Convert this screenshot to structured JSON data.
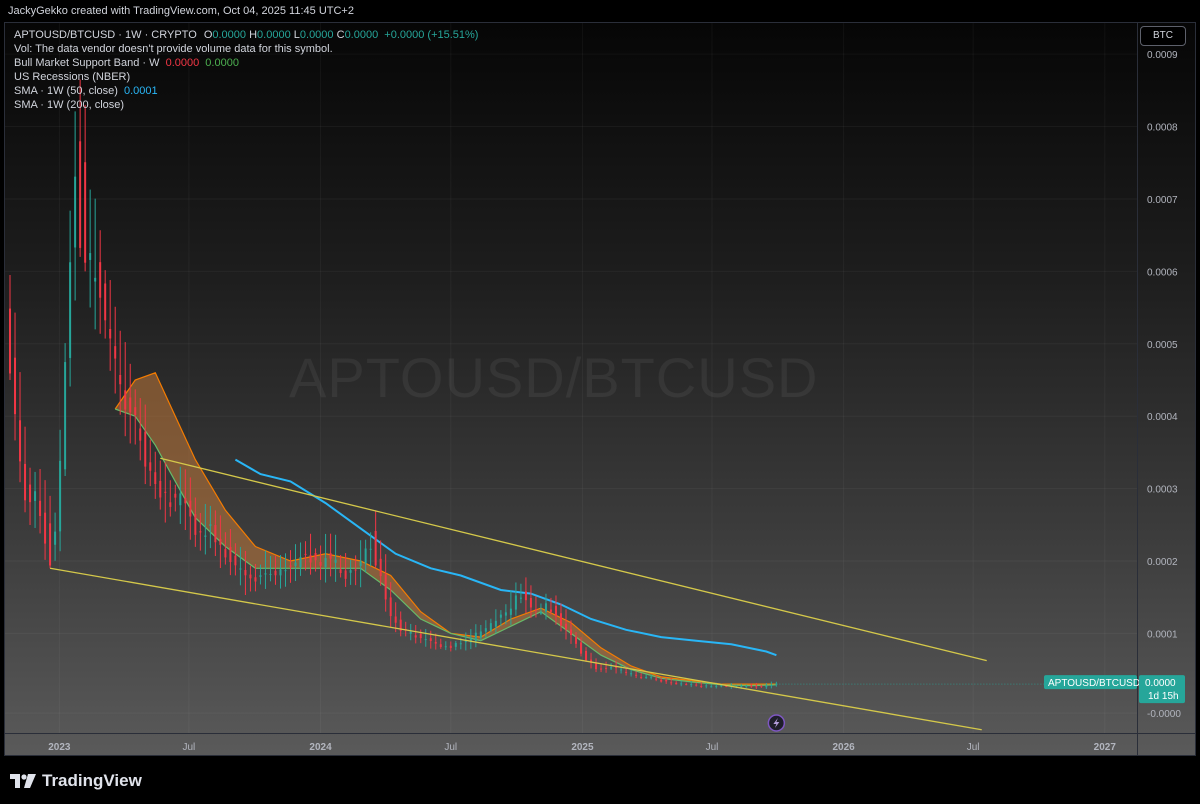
{
  "header": {
    "credit": "JackyGekko created with TradingView.com, Oct 04, 2025 11:45 UTC+2"
  },
  "legend": {
    "symbol_line": {
      "prefix": "APTOUSD/BTCUSD · 1W · CRYPTO",
      "o_label": "O",
      "o_value": "0.0000",
      "h_label": "H",
      "h_value": "0.0000",
      "l_label": "L",
      "l_value": "0.0000",
      "c_label": "C",
      "c_value": "0.0000",
      "change": "+0.0000 (+15.51%)"
    },
    "vol_line": "Vol: The data vendor doesn't provide volume data for this symbol.",
    "bull_band": {
      "label": "Bull Market Support Band · W",
      "value_red": "0.0000",
      "value_green": "0.0000"
    },
    "recessions": "US Recessions (NBER)",
    "sma50": {
      "label": "SMA · 1W (50, close)",
      "value": "0.0001"
    },
    "sma200": {
      "label": "SMA · 1W (200, close)"
    }
  },
  "currency_badge": "BTC",
  "watermark": "APTOUSD/BTCUSD",
  "price_label": {
    "symbol": "APTOUSD/BTCUSD",
    "price": "0.0000",
    "countdown": "1d 15h"
  },
  "branding": {
    "name": "TradingView"
  },
  "colors": {
    "up": "#26a69a",
    "down": "#f23645",
    "sma50": "#29b6f6",
    "bull_band_fill": "#c0793a",
    "bull_band_line": "#66bb6a",
    "channel": "#d4c84a"
  },
  "chart_data": {
    "type": "candlestick",
    "symbol": "APTOUSD/BTCUSD",
    "timeframe": "1W",
    "x_axis": {
      "range": [
        "2022-10-17",
        "2027-02-15"
      ],
      "ticks": [
        {
          "date": "2023-01-01",
          "label": "2023",
          "bold": true
        },
        {
          "date": "2023-07-01",
          "label": "Jul",
          "bold": false
        },
        {
          "date": "2024-01-01",
          "label": "2024",
          "bold": true
        },
        {
          "date": "2024-07-01",
          "label": "Jul",
          "bold": false
        },
        {
          "date": "2025-01-01",
          "label": "2025",
          "bold": true
        },
        {
          "date": "2025-07-01",
          "label": "Jul",
          "bold": false
        },
        {
          "date": "2026-01-01",
          "label": "2026",
          "bold": true
        },
        {
          "date": "2026-07-01",
          "label": "Jul",
          "bold": false
        },
        {
          "date": "2027-01-01",
          "label": "2027",
          "bold": true
        }
      ]
    },
    "y_axis": {
      "range": [
        -3.75e-05,
        0.000943
      ],
      "ticks": [
        {
          "value": 0.0009,
          "label": "0.0009"
        },
        {
          "value": 0.0008,
          "label": "0.0008"
        },
        {
          "value": 0.0007,
          "label": "0.0007"
        },
        {
          "value": 0.0006,
          "label": "0.0006"
        },
        {
          "value": 0.0005,
          "label": "0.0005"
        },
        {
          "value": 0.0004,
          "label": "0.0004"
        },
        {
          "value": 0.0003,
          "label": "0.0003"
        },
        {
          "value": 0.0002,
          "label": "0.0002"
        },
        {
          "value": 0.0001,
          "label": "0.0001"
        },
        {
          "value": -1e-05,
          "label": "-0.0000"
        }
      ]
    },
    "price_path": [
      [
        "2022-10-24",
        0.00052
      ],
      [
        "2022-11-07",
        0.00037
      ],
      [
        "2022-11-21",
        0.00027
      ],
      [
        "2022-12-05",
        0.00029
      ],
      [
        "2022-12-19",
        0.00021
      ],
      [
        "2023-01-02",
        0.00025
      ],
      [
        "2023-01-09",
        0.00042
      ],
      [
        "2023-01-16",
        0.00052
      ],
      [
        "2023-01-23",
        0.00075
      ],
      [
        "2023-01-30",
        0.00068
      ],
      [
        "2023-02-13",
        0.00062
      ],
      [
        "2023-02-27",
        0.00058
      ],
      [
        "2023-03-13",
        0.00052
      ],
      [
        "2023-03-27",
        0.00045
      ],
      [
        "2023-04-10",
        0.00041
      ],
      [
        "2023-04-24",
        0.00038
      ],
      [
        "2023-05-08",
        0.00033
      ],
      [
        "2023-05-22",
        0.0003
      ],
      [
        "2023-06-05",
        0.00028
      ],
      [
        "2023-06-19",
        0.00029
      ],
      [
        "2023-07-03",
        0.00027
      ],
      [
        "2023-07-17",
        0.00023
      ],
      [
        "2023-07-31",
        0.00025
      ],
      [
        "2023-08-14",
        0.00022
      ],
      [
        "2023-08-28",
        0.00021
      ],
      [
        "2023-09-11",
        0.00019
      ],
      [
        "2023-09-25",
        0.00017
      ],
      [
        "2023-10-09",
        0.00018
      ],
      [
        "2023-10-23",
        0.00019
      ],
      [
        "2023-11-06",
        0.00018
      ],
      [
        "2023-11-20",
        0.00019
      ],
      [
        "2023-12-04",
        0.0002
      ],
      [
        "2023-12-18",
        0.00021
      ],
      [
        "2024-01-01",
        0.00019
      ],
      [
        "2024-01-15",
        0.00021
      ],
      [
        "2024-01-29",
        0.00019
      ],
      [
        "2024-02-12",
        0.00018
      ],
      [
        "2024-02-26",
        0.00019
      ],
      [
        "2024-03-11",
        0.00022
      ],
      [
        "2024-03-25",
        0.0002
      ],
      [
        "2024-04-08",
        0.00013
      ],
      [
        "2024-04-22",
        0.00011
      ],
      [
        "2024-05-06",
        0.0001
      ],
      [
        "2024-05-20",
        9.5e-05
      ],
      [
        "2024-06-03",
        9e-05
      ],
      [
        "2024-06-17",
        8.5e-05
      ],
      [
        "2024-07-01",
        8e-05
      ],
      [
        "2024-07-15",
        8.5e-05
      ],
      [
        "2024-07-29",
        9e-05
      ],
      [
        "2024-08-12",
        0.0001
      ],
      [
        "2024-08-26",
        0.00011
      ],
      [
        "2024-09-09",
        0.00012
      ],
      [
        "2024-09-23",
        0.00013
      ],
      [
        "2024-10-07",
        0.00016
      ],
      [
        "2024-10-21",
        0.00014
      ],
      [
        "2024-11-04",
        0.00013
      ],
      [
        "2024-11-18",
        0.00014
      ],
      [
        "2024-12-02",
        0.00012
      ],
      [
        "2024-12-16",
        0.0001
      ],
      [
        "2024-12-30",
        8e-05
      ],
      [
        "2025-01-13",
        6e-05
      ],
      [
        "2025-01-27",
        5e-05
      ],
      [
        "2025-02-10",
        5.5e-05
      ],
      [
        "2025-02-24",
        5e-05
      ],
      [
        "2025-03-10",
        4.5e-05
      ],
      [
        "2025-03-24",
        4e-05
      ],
      [
        "2025-04-07",
        4e-05
      ],
      [
        "2025-04-21",
        3.5e-05
      ],
      [
        "2025-05-05",
        3.3e-05
      ],
      [
        "2025-05-19",
        3e-05
      ],
      [
        "2025-06-02",
        3e-05
      ],
      [
        "2025-06-16",
        2.8e-05
      ],
      [
        "2025-06-30",
        2.7e-05
      ],
      [
        "2025-07-14",
        2.8e-05
      ],
      [
        "2025-07-28",
        2.7e-05
      ],
      [
        "2025-08-11",
        2.6e-05
      ],
      [
        "2025-08-25",
        2.8e-05
      ],
      [
        "2025-09-08",
        2.6e-05
      ],
      [
        "2025-09-22",
        2.8e-05
      ],
      [
        "2025-09-29",
        3e-05
      ]
    ],
    "spikes": [
      {
        "date": "2022-10-24",
        "high": 0.000595,
        "low": 0.00045
      },
      {
        "date": "2022-12-19",
        "high": 0.00029,
        "low": 0.00019
      },
      {
        "date": "2023-01-30",
        "high": 0.000865,
        "low": 0.00062
      },
      {
        "date": "2023-02-06",
        "high": 0.00083,
        "low": 0.0006
      },
      {
        "date": "2024-03-18",
        "high": 0.00027,
        "low": 0.00019
      }
    ],
    "sma50": [
      [
        "2023-09-04",
        0.00034
      ],
      [
        "2023-10-09",
        0.00032
      ],
      [
        "2023-11-20",
        0.00031
      ],
      [
        "2024-01-08",
        0.00028
      ],
      [
        "2024-03-04",
        0.00024
      ],
      [
        "2024-04-15",
        0.00021
      ],
      [
        "2024-06-03",
        0.00019
      ],
      [
        "2024-07-15",
        0.00018
      ],
      [
        "2024-09-09",
        0.00016
      ],
      [
        "2024-10-21",
        0.000155
      ],
      [
        "2024-12-02",
        0.00014
      ],
      [
        "2025-01-13",
        0.00012
      ],
      [
        "2025-03-03",
        0.000105
      ],
      [
        "2025-04-21",
        9.5e-05
      ],
      [
        "2025-06-09",
        9e-05
      ],
      [
        "2025-07-28",
        8.5e-05
      ],
      [
        "2025-09-15",
        7.5e-05
      ],
      [
        "2025-09-29",
        7e-05
      ]
    ],
    "bull_band": [
      [
        "2023-03-20",
        0.00041,
        0.00041
      ],
      [
        "2023-04-17",
        0.00045,
        0.0004
      ],
      [
        "2023-05-15",
        0.00046,
        0.00036
      ],
      [
        "2023-06-12",
        0.0004,
        0.00031
      ],
      [
        "2023-07-10",
        0.00034,
        0.00026
      ],
      [
        "2023-08-21",
        0.00027,
        0.00022
      ],
      [
        "2023-10-02",
        0.00022,
        0.00019
      ],
      [
        "2023-11-20",
        0.0002,
        0.00019
      ],
      [
        "2024-01-08",
        0.00021,
        0.00019
      ],
      [
        "2024-02-26",
        0.0002,
        0.00019
      ],
      [
        "2024-04-08",
        0.00018,
        0.00016
      ],
      [
        "2024-05-20",
        0.00013,
        0.00012
      ],
      [
        "2024-07-01",
        0.0001,
        0.0001
      ],
      [
        "2024-08-12",
        9.5e-05,
        9e-05
      ],
      [
        "2024-09-23",
        0.00012,
        0.00011
      ],
      [
        "2024-11-04",
        0.000135,
        0.00013
      ],
      [
        "2024-12-16",
        0.000115,
        0.0001
      ],
      [
        "2025-01-27",
        8e-05,
        7e-05
      ],
      [
        "2025-03-10",
        5.5e-05,
        5e-05
      ],
      [
        "2025-04-21",
        4e-05,
        3.8e-05
      ],
      [
        "2025-06-02",
        3.5e-05,
        3.3e-05
      ],
      [
        "2025-07-14",
        3e-05,
        2.9e-05
      ],
      [
        "2025-08-25",
        3e-05,
        2.8e-05
      ],
      [
        "2025-09-29",
        3e-05,
        2.9e-05
      ]
    ],
    "channel_lines": [
      {
        "name": "upper",
        "start": [
          "2023-05-22",
          0.000342
        ],
        "end": [
          "2026-07-20",
          6.25e-05
        ]
      },
      {
        "name": "lower",
        "start": [
          "2022-12-19",
          0.00019
        ],
        "end": [
          "2026-07-13",
          -3.3e-05
        ]
      }
    ],
    "last_price": 3e-05
  }
}
